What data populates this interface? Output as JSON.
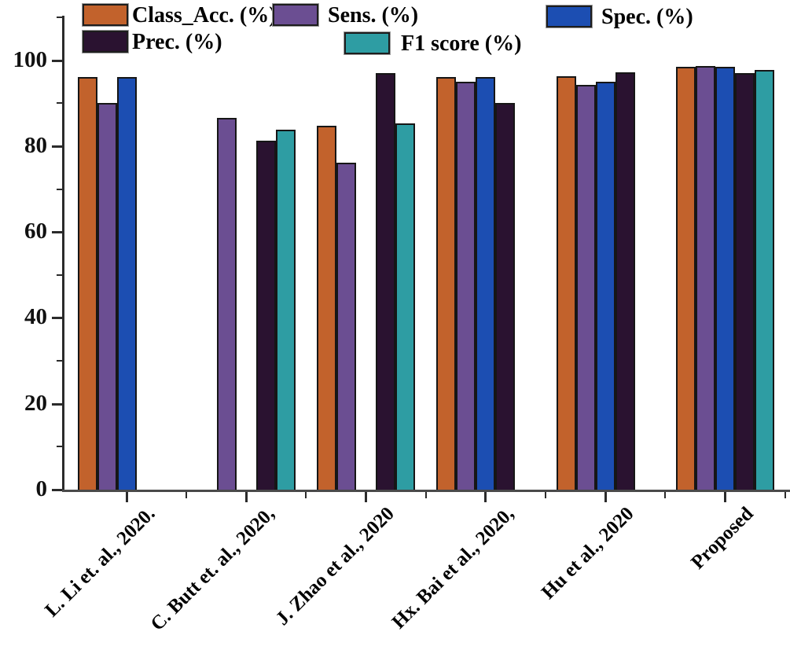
{
  "figure": {
    "background": "#ffffff"
  },
  "chart_data": {
    "type": "bar",
    "title": "",
    "xlabel": "",
    "ylabel": "",
    "grid": false,
    "legend_position": "top",
    "ylim": [
      0,
      110
    ],
    "yticks": [
      0,
      20,
      40,
      60,
      80,
      100
    ],
    "yticks_minor": [
      10,
      30,
      50,
      70,
      90,
      110
    ],
    "categories": [
      "L. Li et. al., 2020.",
      "C. Butt et. al., 2020,",
      "J. Zhao et al., 2020",
      "Hx. Bai et al., 2020,",
      "Hu et al., 2020",
      "Proposed"
    ],
    "series": [
      {
        "name": "Class_Acc. (%)",
        "color": "#c2622c",
        "values": [
          96,
          null,
          84.7,
          96,
          96.2,
          98.5
        ]
      },
      {
        "name": "Sens. (%)",
        "color": "#6b4e92",
        "values": [
          90,
          86.5,
          76.2,
          95,
          94.2,
          98.7
        ]
      },
      {
        "name": "Spec. (%)",
        "color": "#1c4eb2",
        "values": [
          96,
          null,
          null,
          96,
          95,
          98.4
        ]
      },
      {
        "name": "Prec. (%)",
        "color": "#2a1230",
        "values": [
          null,
          81.2,
          97,
          90,
          97.2,
          97
        ]
      },
      {
        "name": "F1 score (%)",
        "color": "#2e9da3",
        "values": [
          null,
          83.9,
          85.3,
          null,
          null,
          97.8
        ]
      }
    ]
  },
  "colors": {
    "axis": "#2b2b2b",
    "x_axis": "#4a4a4a",
    "bar_border": "#161616",
    "text": "#000000"
  }
}
